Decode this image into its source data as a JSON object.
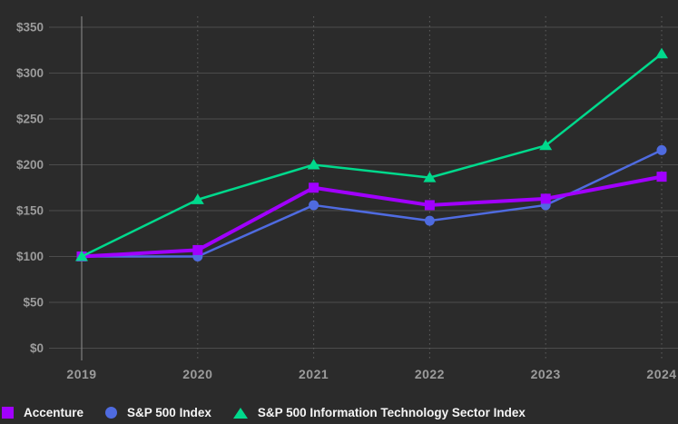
{
  "chart_data": {
    "type": "line",
    "title": "",
    "x": [
      2019,
      2020,
      2021,
      2022,
      2023,
      2024
    ],
    "x_labels": [
      "2019",
      "2020",
      "2021",
      "2022",
      "2023",
      "2024"
    ],
    "y_ticks": [
      0,
      50,
      100,
      150,
      200,
      250,
      300,
      350
    ],
    "y_tick_prefix": "$",
    "ylim": [
      0,
      350
    ],
    "grid": {
      "horizontal": "solid",
      "vertical": "dotted (first year solid)",
      "on": true
    },
    "legend_position": "bottom-left",
    "background_color": "#2b2b2b",
    "gridline_color": "#4c4c4c",
    "axis_text_color": "#9b9b9b",
    "series": [
      {
        "name": "Accenture",
        "color": "#a100ff",
        "marker": "square",
        "line_width": 4,
        "values": [
          100,
          107,
          175,
          156,
          163,
          187
        ]
      },
      {
        "name": "S&P 500 Index",
        "color": "#4f6be0",
        "marker": "circle",
        "line_width": 2.5,
        "values": [
          100,
          100,
          156,
          139,
          156,
          216
        ]
      },
      {
        "name": "S&P 500 Information Technology Sector Index",
        "color": "#00d98c",
        "marker": "triangle",
        "line_width": 2.5,
        "values": [
          100,
          162,
          200,
          186,
          221,
          321
        ]
      }
    ]
  }
}
